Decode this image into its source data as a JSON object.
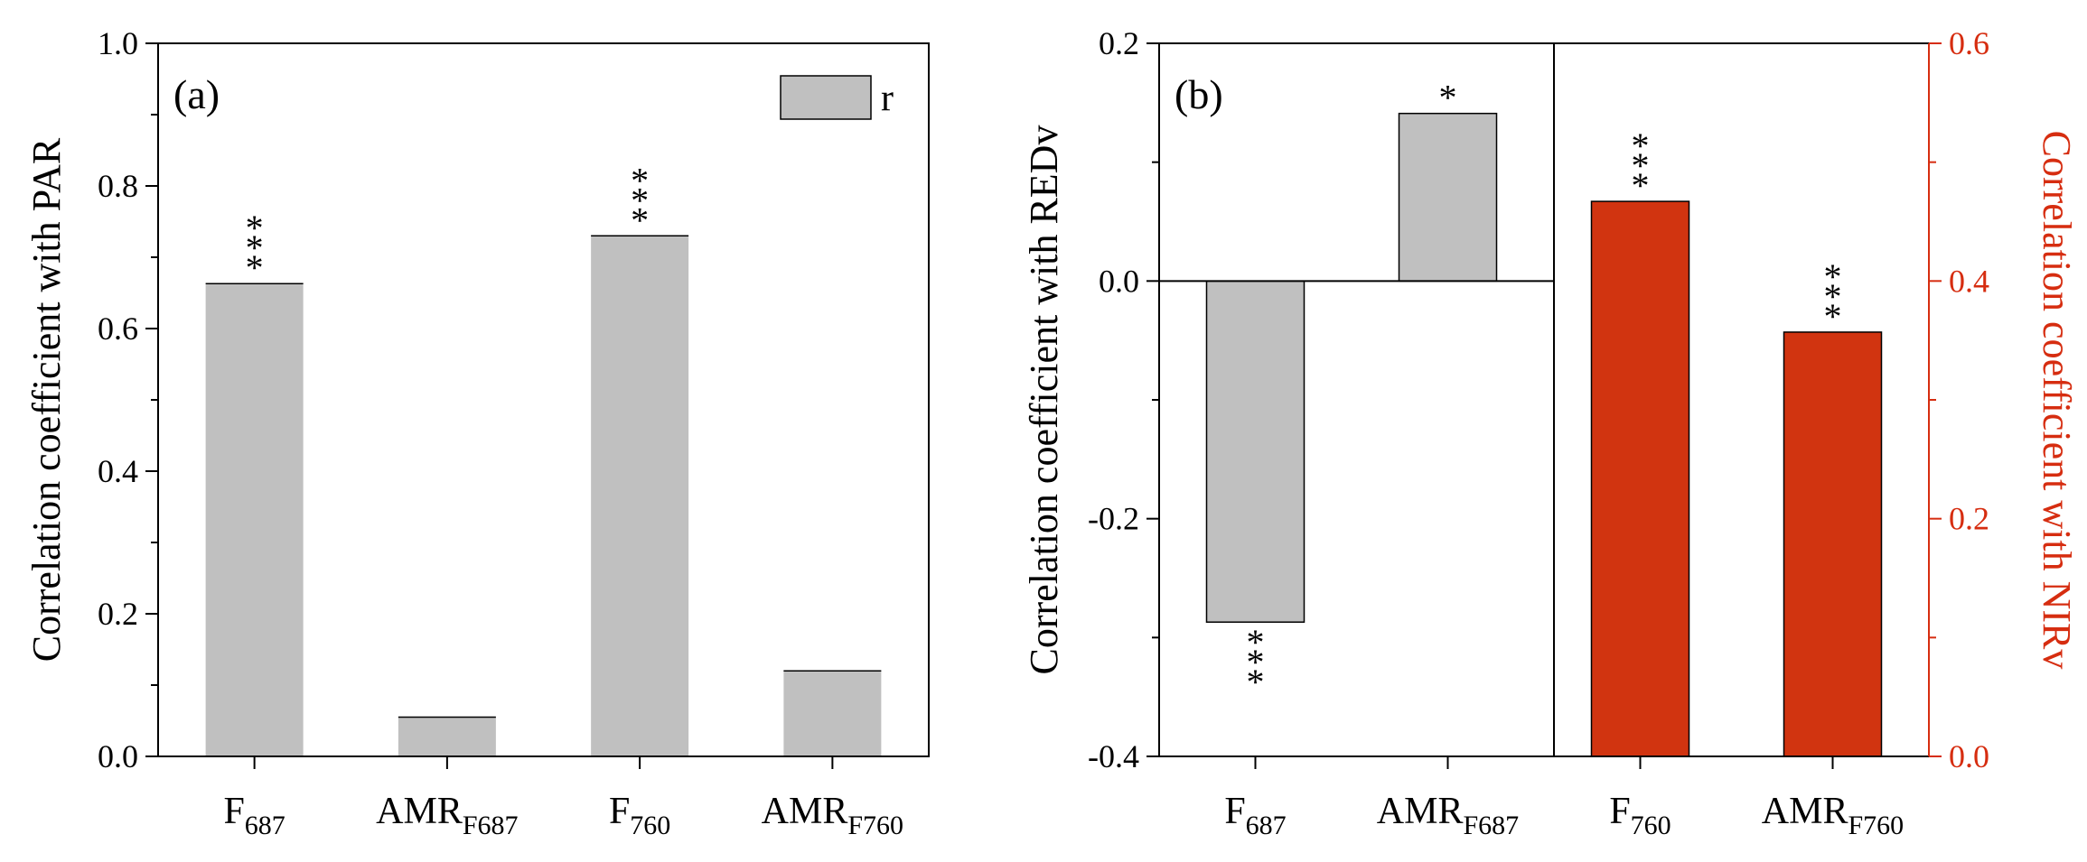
{
  "chart_data": [
    {
      "panel": "(a)",
      "type": "bar",
      "categories": [
        {
          "main": "F",
          "sub": "687"
        },
        {
          "main": "AMR",
          "sub": "F687"
        },
        {
          "main": "F",
          "sub": "760"
        },
        {
          "main": "AMR",
          "sub": "F760"
        }
      ],
      "values": [
        0.663,
        0.055,
        0.73,
        0.12
      ],
      "significance": [
        "***",
        "",
        "***",
        ""
      ],
      "ylabel": "Correlation coefficient with PAR",
      "ylim": [
        0.0,
        1.0
      ],
      "yticks": [
        "0.0",
        "0.2",
        "0.4",
        "0.6",
        "0.8",
        "1.0"
      ],
      "legend": {
        "label": "r",
        "position": "top-right"
      },
      "bar_color": "#c0c0c0"
    },
    {
      "panel": "(b)",
      "type": "bar",
      "categories": [
        {
          "main": "F",
          "sub": "687"
        },
        {
          "main": "AMR",
          "sub": "F687"
        },
        {
          "main": "F",
          "sub": "760"
        },
        {
          "main": "AMR",
          "sub": "F760"
        }
      ],
      "left_axis": {
        "label": "Correlation coefficient with REDv",
        "ylim": [
          -0.4,
          0.2
        ],
        "yticks": [
          "-0.4",
          "-0.2",
          "0.0",
          "0.2"
        ],
        "series": {
          "categories_index": [
            0,
            1
          ],
          "values": [
            -0.287,
            0.141
          ],
          "significance": [
            "***",
            "*"
          ],
          "color": "#c0c0c0"
        }
      },
      "right_axis": {
        "label": "Correlation coefficient with NIRv",
        "ylim": [
          0.0,
          0.6
        ],
        "yticks": [
          "0.0",
          "0.2",
          "0.4",
          "0.6"
        ],
        "series": {
          "categories_index": [
            2,
            3
          ],
          "values": [
            0.467,
            0.357
          ],
          "significance": [
            "***",
            "***"
          ],
          "color": "#d13410"
        },
        "color": "#d62d10"
      }
    }
  ]
}
